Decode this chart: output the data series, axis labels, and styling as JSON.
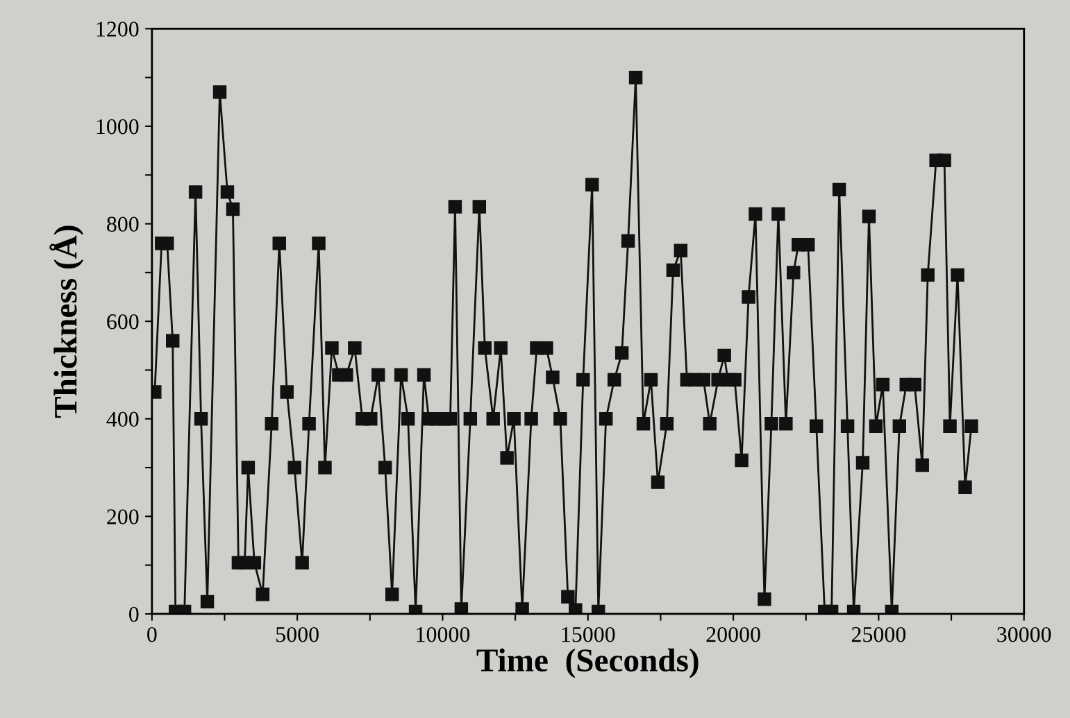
{
  "chart_data": {
    "type": "line",
    "xlabel": "Time  (Seconds)",
    "ylabel": "Thickness (Å)",
    "x": [
      95,
      333,
      524,
      714,
      810,
      1119,
      1500,
      1690,
      1905,
      2333,
      2595,
      2786,
      2976,
      3190,
      3310,
      3524,
      3810,
      4119,
      4381,
      4643,
      4905,
      5167,
      5405,
      5738,
      5952,
      6190,
      6429,
      6690,
      6976,
      7238,
      7524,
      7786,
      8024,
      8262,
      8571,
      8810,
      9071,
      9357,
      9524,
      9786,
      10048,
      10262,
      10429,
      10643,
      10952,
      11262,
      11452,
      11738,
      12000,
      12214,
      12452,
      12738,
      13048,
      13238,
      13571,
      13786,
      14048,
      14310,
      14571,
      14833,
      15143,
      15357,
      15619,
      15905,
      16167,
      16381,
      16643,
      16905,
      17167,
      17405,
      17714,
      17929,
      18190,
      18405,
      18667,
      18976,
      19190,
      19476,
      19690,
      19810,
      20048,
      20286,
      20524,
      20762,
      21071,
      21310,
      21548,
      21810,
      22071,
      22238,
      22571,
      22857,
      23143,
      23381,
      23643,
      23929,
      24143,
      24452,
      24667,
      24905,
      25143,
      25452,
      25714,
      25952,
      26238,
      26500,
      26690,
      26976,
      27262,
      27452,
      27714,
      27976,
      28190
    ],
    "series": [
      {
        "color": "#111111",
        "values": [
          455,
          760,
          760,
          560,
          5,
          5,
          865,
          400,
          25,
          1070,
          865,
          830,
          105,
          105,
          300,
          105,
          40,
          390,
          760,
          455,
          300,
          105,
          390,
          760,
          300,
          545,
          490,
          490,
          545,
          400,
          400,
          490,
          300,
          40,
          490,
          400,
          5,
          490,
          400,
          400,
          400,
          400,
          835,
          10,
          400,
          835,
          545,
          400,
          545,
          320,
          400,
          10,
          400,
          545,
          545,
          485,
          400,
          35,
          8,
          480,
          880,
          5,
          400,
          480,
          535,
          765,
          1100,
          390,
          480,
          270,
          390,
          705,
          745,
          480,
          480,
          480,
          390,
          480,
          530,
          480,
          480,
          315,
          650,
          820,
          30,
          390,
          820,
          390,
          700,
          757,
          757,
          385,
          5,
          5,
          870,
          385,
          5,
          310,
          815,
          385,
          470,
          5,
          385,
          470,
          470,
          305,
          695,
          930,
          930,
          385,
          695,
          260,
          385
        ]
      }
    ],
    "marker": "square",
    "line_style": "solid",
    "grid": false,
    "legend": false,
    "xlim": [
      0,
      30000
    ],
    "ylim": [
      0,
      1200
    ],
    "xticks": [
      0,
      {
        "value": 2500,
        "label": null
      },
      5000,
      {
        "value": 7500,
        "label": null
      },
      10000,
      {
        "value": 12500,
        "label": null
      },
      15000,
      {
        "value": 17500,
        "label": null
      },
      20000,
      {
        "value": 22500,
        "label": null
      },
      25000,
      {
        "value": 27500,
        "label": null
      },
      30000
    ],
    "yticks": [
      0,
      {
        "value": 100,
        "label": null
      },
      200,
      {
        "value": 300,
        "label": null
      },
      400,
      {
        "value": 500,
        "label": null
      },
      600,
      {
        "value": 700,
        "label": null
      },
      800,
      {
        "value": 900,
        "label": null
      },
      1000,
      {
        "value": 1100,
        "label": null
      },
      1200
    ]
  }
}
